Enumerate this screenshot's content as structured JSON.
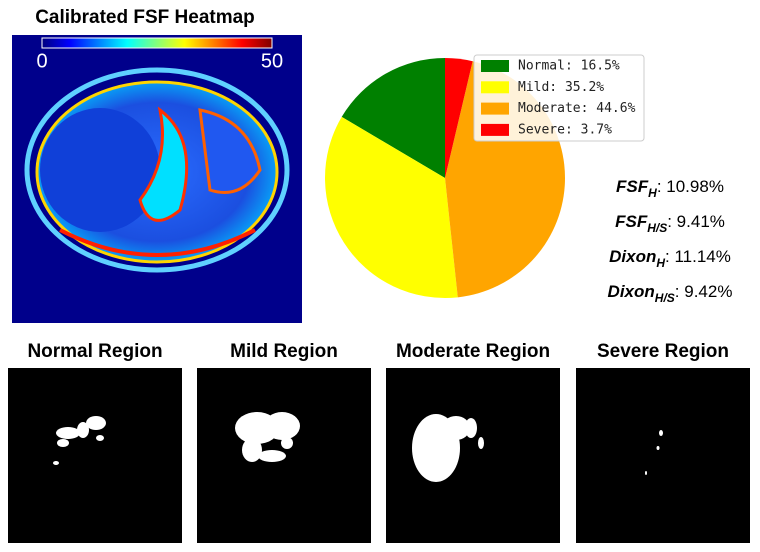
{
  "heatmap": {
    "title": "Calibrated FSF Heatmap",
    "colorbar_ticks": [
      "0",
      "50"
    ]
  },
  "chart_data": {
    "type": "pie",
    "categories": [
      "Normal: 16.5%",
      "Mild: 35.2%",
      "Moderate: 44.6%",
      "Severe: 3.7%"
    ],
    "values": [
      16.5,
      35.2,
      44.6,
      3.7
    ],
    "colors": [
      "#008000",
      "#ffff00",
      "#ffa500",
      "#ff0000"
    ],
    "legend": "upper right"
  },
  "metrics": [
    {
      "name": "FSF",
      "subscript": "H",
      "value": ": 10.98%"
    },
    {
      "name": "FSF",
      "subscript": "H/S",
      "value": ": 9.41%"
    },
    {
      "name": "Dixon",
      "subscript": "H",
      "value": ": 11.14%"
    },
    {
      "name": "Dixon",
      "subscript": "H/S",
      "value": ": 9.42%"
    }
  ],
  "regions": [
    "Normal Region",
    "Mild Region",
    "Moderate Region",
    "Severe Region"
  ]
}
